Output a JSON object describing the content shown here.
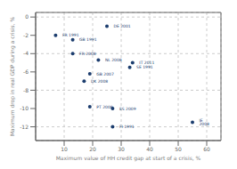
{
  "chart_data": {
    "type": "scatter",
    "xlabel": "Maximum value of HH credit gap at start of a crisis, %",
    "ylabel": "Maximum drop in real GDP during a crisis, %",
    "labels": [
      "FR 1991",
      "GB 1991",
      "DE 2001",
      "FR 2008",
      "NL 2008",
      "IT 2011",
      "SE 1991",
      "GB 2007",
      "DK 2008",
      "PT 2008",
      "ES 2009",
      "IE 2008",
      "FI 1991"
    ],
    "x": [
      7,
      13,
      25,
      13,
      22,
      34,
      33,
      19,
      17,
      19,
      27,
      55,
      27
    ],
    "values": [
      -2.0,
      -2.5,
      -1.0,
      -4.0,
      -4.7,
      -5.0,
      -5.5,
      -6.2,
      -7.0,
      -9.8,
      -10.0,
      -11.5,
      -12.0
    ],
    "color": "#1c3d6e",
    "xlim": [
      0,
      65
    ],
    "ylim": [
      -13.5,
      0.5
    ],
    "xticks": [
      10,
      20,
      30,
      40,
      50,
      60
    ],
    "yticks": [
      0,
      -2,
      -4,
      -6,
      -8,
      -10,
      -12
    ],
    "grid": true
  }
}
